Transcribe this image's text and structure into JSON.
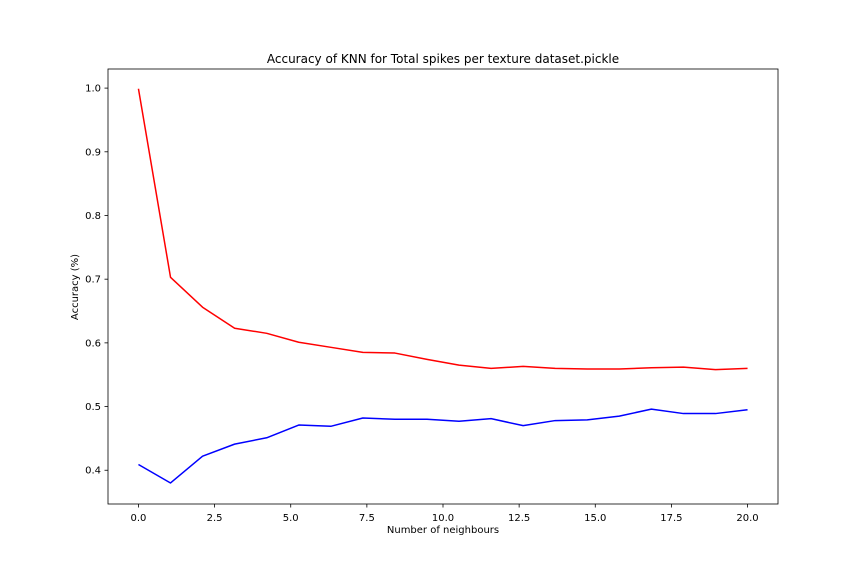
{
  "chart_data": {
    "type": "line",
    "title": "Accuracy of KNN for Total spikes per texture dataset.pickle",
    "xlabel": "Number of neighbours",
    "ylabel": "Accuracy (%)",
    "xlim": [
      -1.0,
      21.0
    ],
    "ylim": [
      0.347,
      1.03
    ],
    "xticks": [
      0.0,
      2.5,
      5.0,
      7.5,
      10.0,
      12.5,
      15.0,
      17.5,
      20.0
    ],
    "xtick_labels": [
      "0.0",
      "2.5",
      "5.0",
      "7.5",
      "10.0",
      "12.5",
      "15.0",
      "17.5",
      "20.0"
    ],
    "yticks": [
      0.4,
      0.5,
      0.6,
      0.7,
      0.8,
      0.9,
      1.0
    ],
    "ytick_labels": [
      "0.4",
      "0.5",
      "0.6",
      "0.7",
      "0.8",
      "0.9",
      "1.0"
    ],
    "grid": false,
    "x": [
      0.0,
      1.053,
      2.105,
      3.158,
      4.211,
      5.263,
      6.316,
      7.368,
      8.421,
      9.474,
      10.526,
      11.579,
      12.632,
      13.684,
      14.737,
      15.789,
      16.842,
      17.895,
      18.947,
      20.0
    ],
    "series": [
      {
        "color": "#ff0000",
        "values": [
          0.999,
          0.703,
          0.656,
          0.623,
          0.615,
          0.601,
          0.593,
          0.585,
          0.584,
          0.574,
          0.565,
          0.56,
          0.563,
          0.56,
          0.559,
          0.559,
          0.561,
          0.562,
          0.558,
          0.56
        ]
      },
      {
        "color": "#0000ff",
        "values": [
          0.409,
          0.38,
          0.422,
          0.441,
          0.451,
          0.471,
          0.469,
          0.482,
          0.48,
          0.48,
          0.477,
          0.481,
          0.47,
          0.478,
          0.479,
          0.485,
          0.496,
          0.489,
          0.489,
          0.495
        ]
      }
    ]
  }
}
